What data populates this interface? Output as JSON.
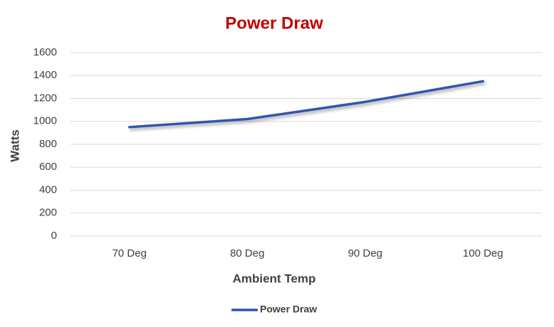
{
  "chart_data": {
    "type": "line",
    "title": "Power Draw",
    "x_label": "Ambient Temp",
    "y_label": "Watts",
    "categories": [
      "70 Deg",
      "80 Deg",
      "90 Deg",
      "100 Deg"
    ],
    "series": [
      {
        "name": "Power Draw",
        "color": "#2e54b4",
        "values": [
          950,
          1020,
          1170,
          1350
        ]
      }
    ],
    "ylim": [
      0,
      1600
    ],
    "yticks": [
      0,
      200,
      400,
      600,
      800,
      1000,
      1200,
      1400,
      1600
    ],
    "grid": true,
    "legend": "bottom"
  }
}
